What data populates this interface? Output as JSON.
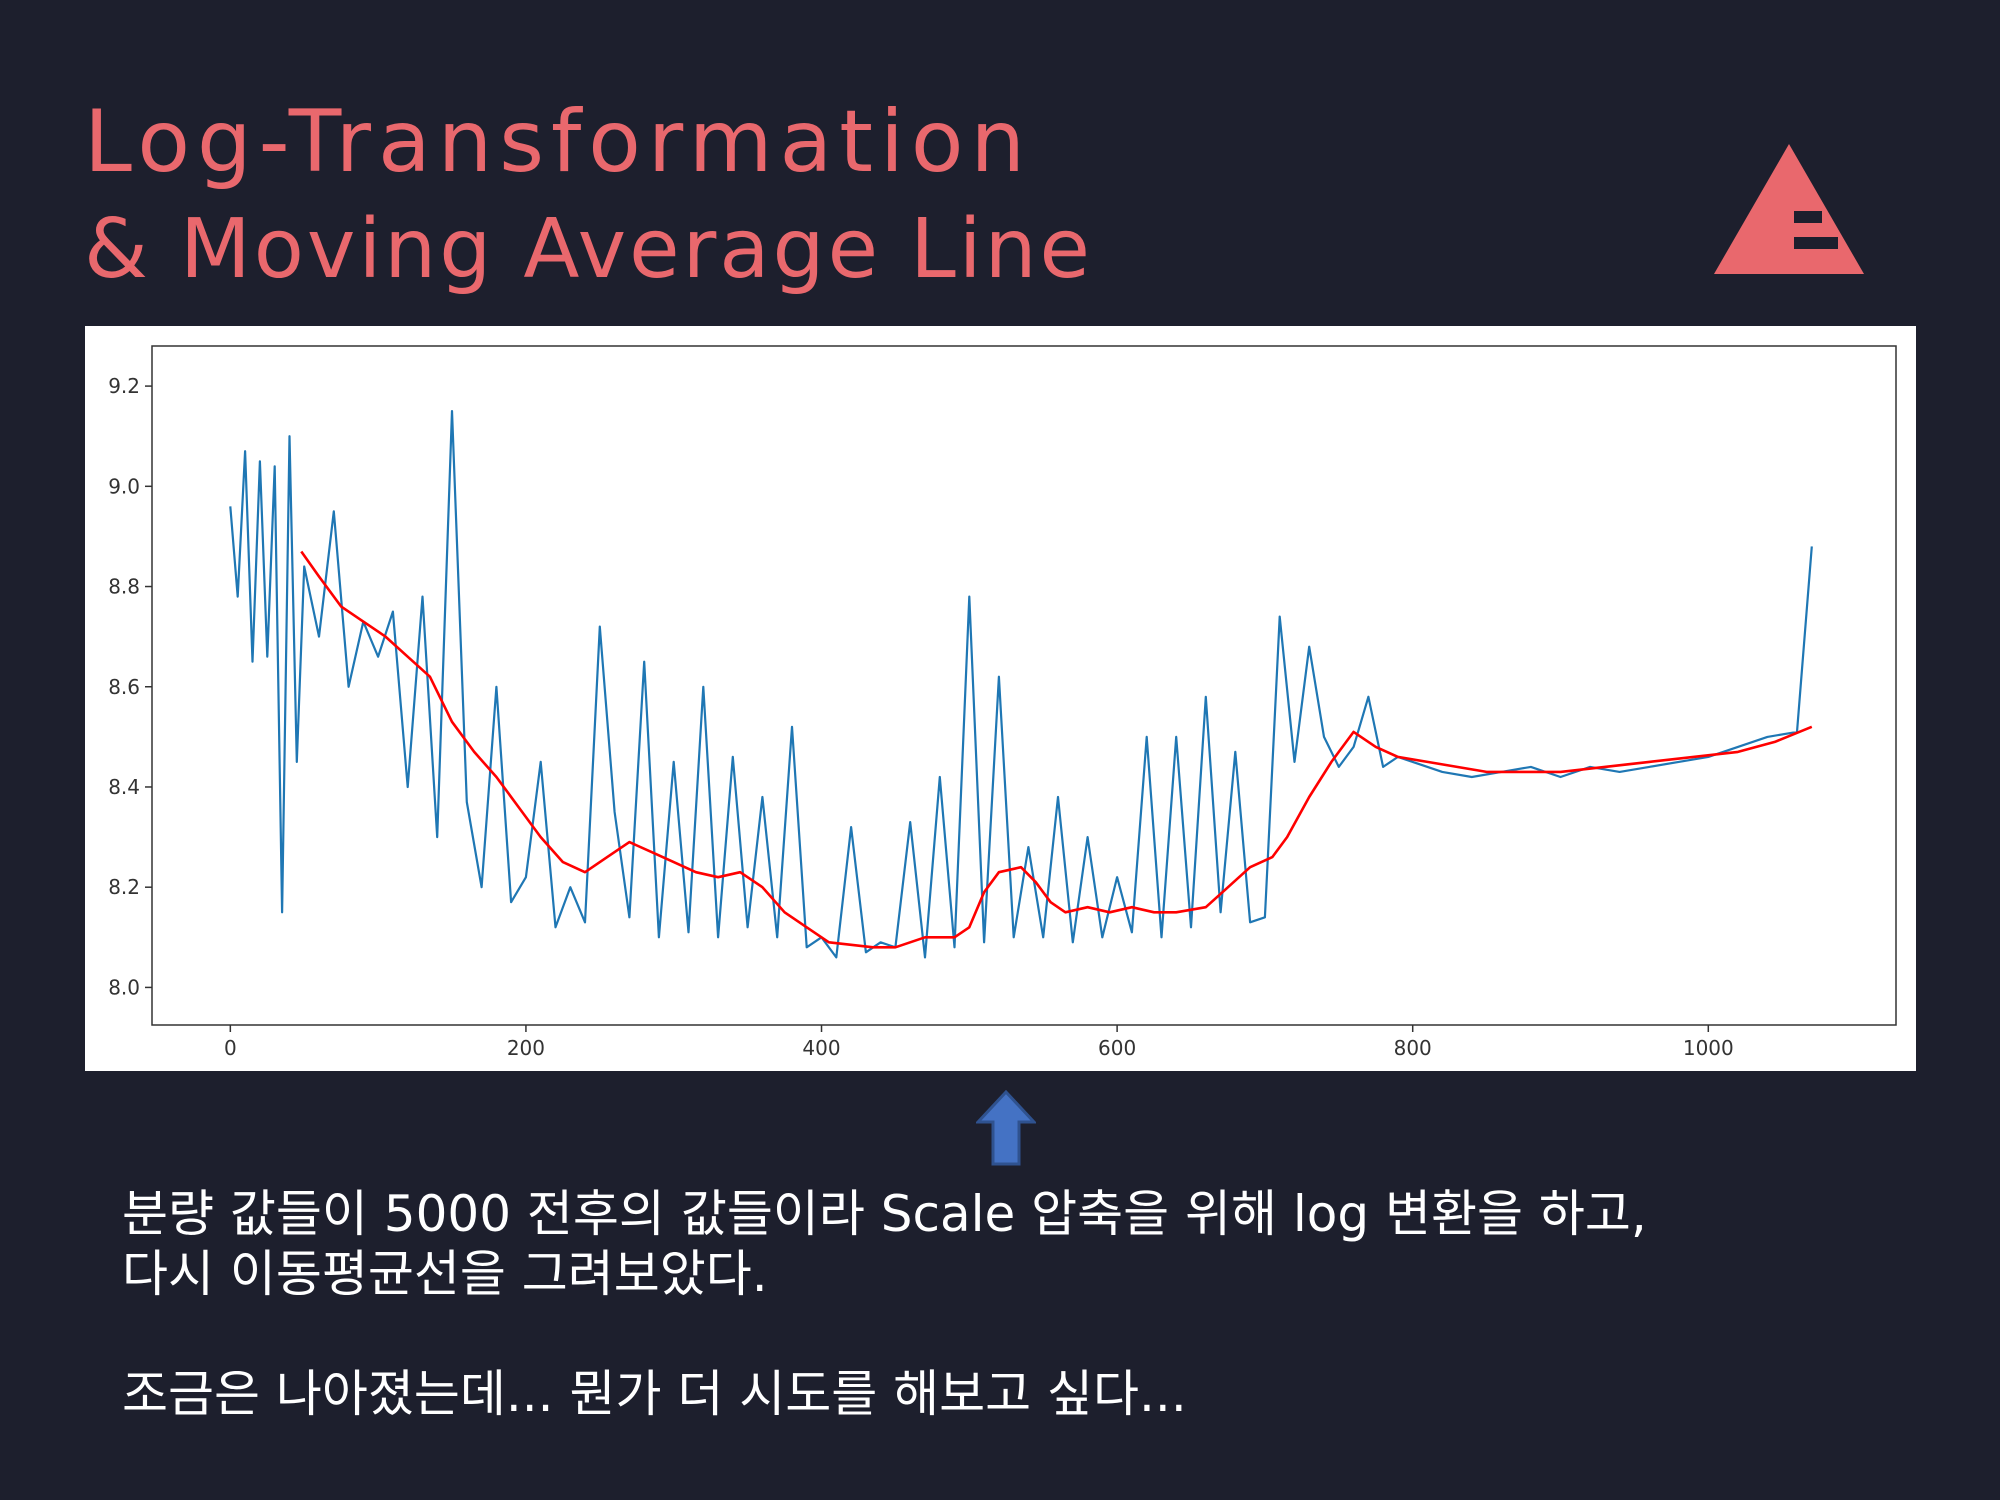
{
  "slide": {
    "title_line_1": "Log-Transformation",
    "title_line_2": "& Moving Average Line",
    "logo_icon": "triangle-logo-icon",
    "accent_color": "#e9686d",
    "background_color": "#1d1f2d",
    "arrow_icon": "up-arrow-icon"
  },
  "caption": {
    "line_1": "분량 값들이 5000 전후의 값들이라 Scale 압축을 위해 log 변환을 하고,",
    "line_2": "다시 이동평균선을 그려보았다.",
    "line_3": "조금은 나아졌는데... 뭔가 더 시도를 해보고 싶다..."
  },
  "chart_data": {
    "type": "line",
    "title": "",
    "xlabel": "",
    "ylabel": "",
    "xlim": [
      -53,
      1127
    ],
    "ylim": [
      7.925,
      9.28
    ],
    "xticks": [
      0,
      200,
      400,
      600,
      800,
      1000
    ],
    "yticks": [
      8.0,
      8.2,
      8.4,
      8.6,
      8.8,
      9.0,
      9.2
    ],
    "xtick_labels": [
      "0",
      "200",
      "400",
      "600",
      "800",
      "1000"
    ],
    "ytick_labels": [
      "8.0",
      "8.2",
      "8.4",
      "8.6",
      "8.8",
      "9.0",
      "9.2"
    ],
    "grid": false,
    "series": [
      {
        "color": "#1f77b4",
        "x": [
          0,
          5,
          10,
          15,
          20,
          25,
          30,
          35,
          40,
          45,
          50,
          60,
          70,
          80,
          90,
          100,
          110,
          120,
          130,
          140,
          150,
          160,
          170,
          180,
          190,
          200,
          210,
          220,
          230,
          240,
          250,
          260,
          270,
          280,
          290,
          300,
          310,
          320,
          330,
          340,
          350,
          360,
          370,
          380,
          390,
          400,
          410,
          420,
          430,
          440,
          450,
          460,
          470,
          480,
          490,
          500,
          510,
          520,
          530,
          540,
          550,
          560,
          570,
          580,
          590,
          600,
          610,
          620,
          630,
          640,
          650,
          660,
          670,
          680,
          690,
          700,
          710,
          720,
          730,
          740,
          750,
          760,
          770,
          780,
          790,
          800,
          820,
          840,
          860,
          880,
          900,
          920,
          940,
          960,
          980,
          1000,
          1020,
          1040,
          1060,
          1070
        ],
        "values": [
          8.96,
          8.78,
          9.07,
          8.65,
          9.05,
          8.66,
          9.04,
          8.15,
          9.1,
          8.45,
          8.84,
          8.7,
          8.95,
          8.6,
          8.73,
          8.66,
          8.75,
          8.4,
          8.78,
          8.3,
          9.15,
          8.37,
          8.2,
          8.6,
          8.17,
          8.22,
          8.45,
          8.12,
          8.2,
          8.13,
          8.72,
          8.35,
          8.14,
          8.65,
          8.1,
          8.45,
          8.11,
          8.6,
          8.1,
          8.46,
          8.12,
          8.38,
          8.1,
          8.52,
          8.08,
          8.1,
          8.06,
          8.32,
          8.07,
          8.09,
          8.08,
          8.33,
          8.06,
          8.42,
          8.08,
          8.78,
          8.09,
          8.62,
          8.1,
          8.28,
          8.1,
          8.38,
          8.09,
          8.3,
          8.1,
          8.22,
          8.11,
          8.5,
          8.1,
          8.5,
          8.12,
          8.58,
          8.15,
          8.47,
          8.13,
          8.14,
          8.74,
          8.45,
          8.68,
          8.5,
          8.44,
          8.48,
          8.58,
          8.44,
          8.46,
          8.45,
          8.43,
          8.42,
          8.43,
          8.44,
          8.42,
          8.44,
          8.43,
          8.44,
          8.45,
          8.46,
          8.48,
          8.5,
          8.51,
          8.88
        ]
      },
      {
        "color": "#ff0000",
        "x": [
          48,
          60,
          75,
          90,
          105,
          120,
          135,
          150,
          165,
          180,
          195,
          210,
          225,
          240,
          255,
          270,
          285,
          300,
          315,
          330,
          345,
          360,
          375,
          390,
          405,
          420,
          435,
          450,
          470,
          490,
          500,
          510,
          520,
          535,
          545,
          555,
          565,
          580,
          595,
          610,
          625,
          640,
          660,
          675,
          690,
          705,
          715,
          730,
          745,
          760,
          775,
          790,
          810,
          830,
          850,
          870,
          900,
          930,
          960,
          990,
          1020,
          1045,
          1070
        ],
        "values": [
          8.87,
          8.82,
          8.76,
          8.73,
          8.7,
          8.66,
          8.62,
          8.53,
          8.47,
          8.42,
          8.36,
          8.3,
          8.25,
          8.23,
          8.26,
          8.29,
          8.27,
          8.25,
          8.23,
          8.22,
          8.23,
          8.2,
          8.15,
          8.12,
          8.09,
          8.085,
          8.08,
          8.08,
          8.1,
          8.1,
          8.12,
          8.19,
          8.23,
          8.24,
          8.21,
          8.17,
          8.15,
          8.16,
          8.15,
          8.16,
          8.15,
          8.15,
          8.16,
          8.2,
          8.24,
          8.26,
          8.3,
          8.38,
          8.45,
          8.51,
          8.48,
          8.46,
          8.45,
          8.44,
          8.43,
          8.43,
          8.43,
          8.44,
          8.45,
          8.46,
          8.47,
          8.49,
          8.52
        ]
      }
    ]
  }
}
